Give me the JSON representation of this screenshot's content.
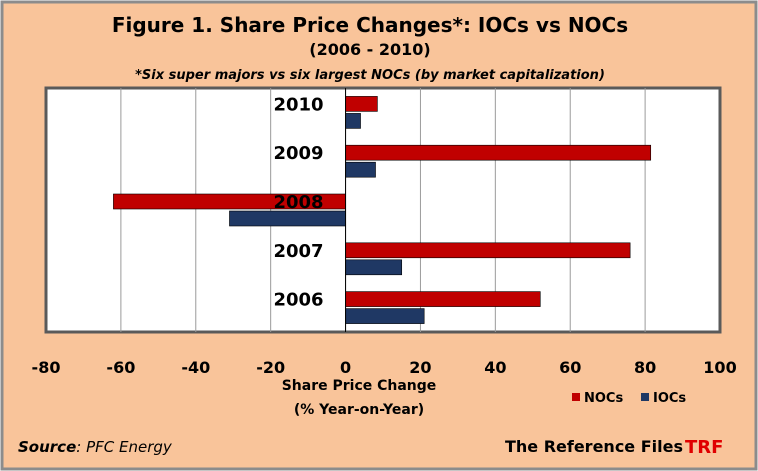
{
  "colors": {
    "background": "#F9C49A",
    "border": "#8C8C8C",
    "plot_background": "#FFFFFF",
    "plot_border": "#5A5A5A",
    "gridline": "#9A9A9A",
    "nocs": "#C00000",
    "iocs": "#1F3864",
    "trf": "#E00000"
  },
  "title": "Figure 1.  Share Price Changes*: IOCs vs NOCs",
  "subtitle": "(2006 - 2010)",
  "footnote": "*Six super majors vs six largest NOCs (by market capitalization)",
  "source_label": "Source",
  "source_value": ": PFC Energy",
  "branding": {
    "text": "The Reference  Files",
    "logo": "TRF"
  },
  "chart_data": {
    "type": "bar",
    "orientation": "horizontal",
    "categories": [
      "2010",
      "2009",
      "2008",
      "2007",
      "2006"
    ],
    "series": [
      {
        "name": "NOCs",
        "color": "#C00000",
        "values": [
          8.5,
          81.5,
          -62,
          76,
          52
        ]
      },
      {
        "name": "IOCs",
        "color": "#1F3864",
        "values": [
          4,
          8,
          -31,
          15,
          21
        ]
      }
    ],
    "xlim": [
      -80,
      100
    ],
    "x_ticks": [
      "-80",
      "-60",
      "-40",
      "-20",
      "0",
      "20",
      "40",
      "60",
      "80",
      "100"
    ],
    "xlabel_line1": "Share Price Change",
    "xlabel_line2": "(% Year-on-Year)",
    "grid": "vertical",
    "legend_position": "bottom-right"
  }
}
